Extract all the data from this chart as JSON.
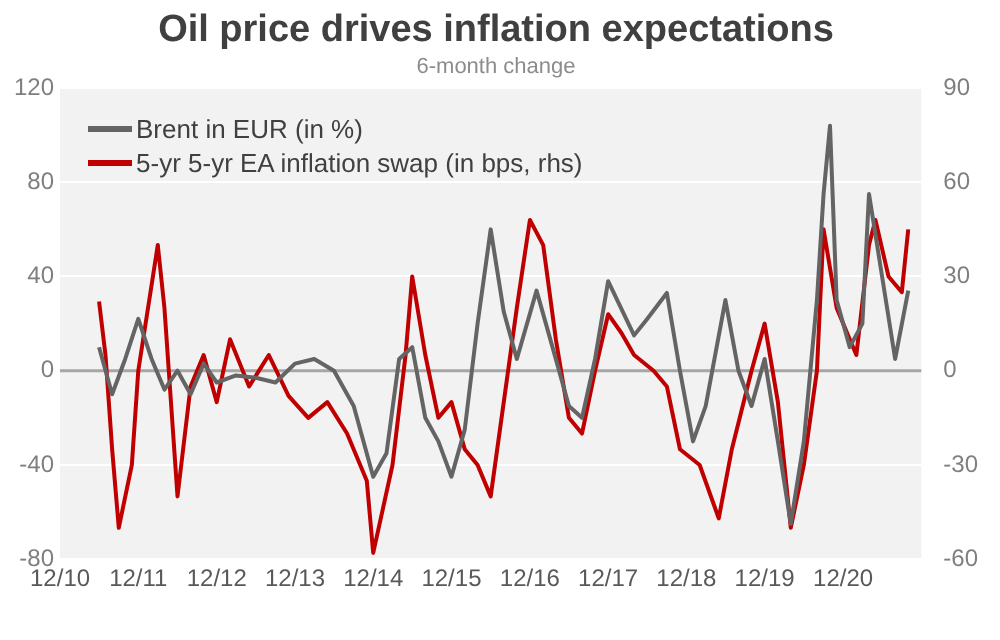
{
  "chart_data": {
    "type": "line",
    "title": "Oil price drives inflation expectations",
    "subtitle": "6-month change",
    "xlim": [
      "2010-12",
      "2021-12"
    ],
    "xticks": [
      {
        "value": "2010-12",
        "label": "12/10"
      },
      {
        "value": "2011-12",
        "label": "12/11"
      },
      {
        "value": "2012-12",
        "label": "12/12"
      },
      {
        "value": "2013-12",
        "label": "12/13"
      },
      {
        "value": "2014-12",
        "label": "12/14"
      },
      {
        "value": "2015-12",
        "label": "12/15"
      },
      {
        "value": "2016-12",
        "label": "12/16"
      },
      {
        "value": "2017-12",
        "label": "12/17"
      },
      {
        "value": "2018-12",
        "label": "12/18"
      },
      {
        "value": "2019-12",
        "label": "12/19"
      },
      {
        "value": "2020-12",
        "label": "12/20"
      }
    ],
    "ylim": [
      -80,
      120
    ],
    "yticks": [
      -80,
      -40,
      0,
      40,
      80,
      120
    ],
    "y2lim": [
      -60,
      90
    ],
    "y2ticks": [
      -60,
      -30,
      0,
      30,
      60,
      90
    ],
    "grid": "y",
    "legend": "top left",
    "marker": "none",
    "line_style": "solid",
    "ref_lines": [
      {
        "axis": "y",
        "value": 0,
        "color": "#a6a6a6"
      }
    ],
    "series": [
      {
        "name": "Brent in EUR (in %)",
        "color": "#646464",
        "x": [
          "2011-06",
          "2011-08",
          "2011-10",
          "2011-12",
          "2012-02",
          "2012-04",
          "2012-06",
          "2012-08",
          "2012-10",
          "2012-12",
          "2013-03",
          "2013-06",
          "2013-09",
          "2013-12",
          "2014-03",
          "2014-06",
          "2014-09",
          "2014-12",
          "2015-02",
          "2015-04",
          "2015-06",
          "2015-08",
          "2015-10",
          "2015-12",
          "2016-02",
          "2016-04",
          "2016-06",
          "2016-08",
          "2016-10",
          "2017-01",
          "2017-03",
          "2017-06",
          "2017-08",
          "2017-10",
          "2017-12",
          "2018-04",
          "2018-06",
          "2018-09",
          "2018-11",
          "2019-01",
          "2019-03",
          "2019-06",
          "2019-08",
          "2019-10",
          "2019-12",
          "2020-02",
          "2020-04",
          "2020-06",
          "2020-08",
          "2020-09",
          "2020-10",
          "2020-11",
          "2021-01",
          "2021-03",
          "2021-04",
          "2021-06",
          "2021-08",
          "2021-10"
        ],
        "values": [
          10,
          -10,
          5,
          22,
          5,
          -8,
          0,
          -10,
          3,
          -5,
          -2,
          -3,
          -5,
          3,
          5,
          0,
          -15,
          -45,
          -35,
          5,
          10,
          -20,
          -30,
          -45,
          -25,
          20,
          60,
          25,
          5,
          34,
          15,
          -15,
          -20,
          5,
          38,
          15,
          22,
          33,
          0,
          -30,
          -15,
          30,
          0,
          -15,
          5,
          -30,
          -65,
          -30,
          30,
          75,
          104,
          30,
          10,
          20,
          75,
          40,
          5,
          34
        ]
      },
      {
        "name": "5-yr 5-yr EA inflation swap (in bps, rhs)",
        "color": "#c00000",
        "axis": "y2",
        "x": [
          "2011-06",
          "2011-07",
          "2011-08",
          "2011-09",
          "2011-11",
          "2011-12",
          "2012-03",
          "2012-04",
          "2012-06",
          "2012-08",
          "2012-10",
          "2012-12",
          "2013-02",
          "2013-05",
          "2013-08",
          "2013-11",
          "2014-02",
          "2014-05",
          "2014-08",
          "2014-11",
          "2014-12",
          "2015-03",
          "2015-05",
          "2015-06",
          "2015-08",
          "2015-10",
          "2015-12",
          "2016-02",
          "2016-04",
          "2016-06",
          "2016-08",
          "2016-10",
          "2016-12",
          "2017-02",
          "2017-04",
          "2017-06",
          "2017-08",
          "2017-10",
          "2017-12",
          "2018-02",
          "2018-04",
          "2018-07",
          "2018-09",
          "2018-11",
          "2019-02",
          "2019-05",
          "2019-07",
          "2019-10",
          "2019-12",
          "2020-02",
          "2020-04",
          "2020-06",
          "2020-08",
          "2020-09",
          "2020-11",
          "2021-01",
          "2021-02",
          "2021-04",
          "2021-05",
          "2021-07",
          "2021-09",
          "2021-10"
        ],
        "values": [
          22,
          5,
          -25,
          -50,
          -30,
          0,
          40,
          20,
          -40,
          -5,
          5,
          -10,
          10,
          -5,
          5,
          -8,
          -15,
          -10,
          -20,
          -35,
          -58,
          -30,
          5,
          30,
          5,
          -15,
          -10,
          -25,
          -30,
          -40,
          -10,
          20,
          48,
          40,
          10,
          -15,
          -20,
          0,
          18,
          12,
          5,
          0,
          -5,
          -25,
          -30,
          -47,
          -25,
          0,
          15,
          -10,
          -50,
          -30,
          0,
          45,
          20,
          10,
          5,
          40,
          48,
          30,
          25,
          45
        ]
      }
    ]
  }
}
